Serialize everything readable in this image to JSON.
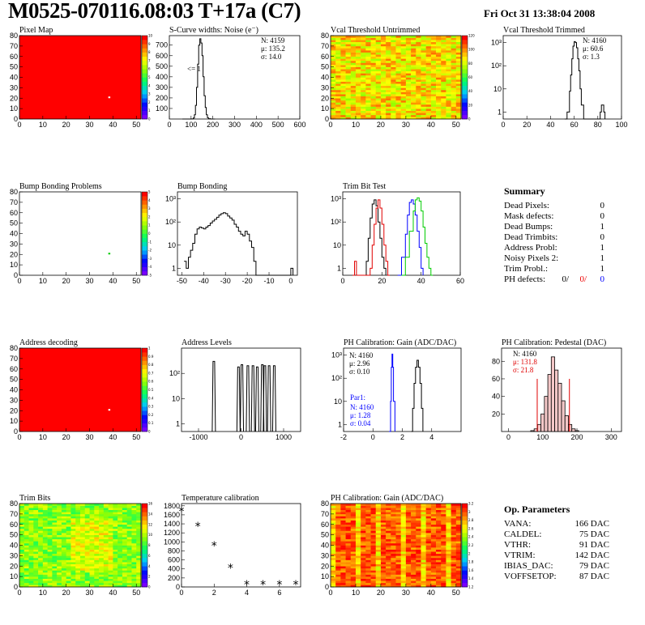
{
  "header": {
    "title": "M0525-070116.08:03 T+17a (C7)",
    "date": "Fri Oct 31 13:38:04 2008"
  },
  "colors": {
    "map_red": "#ff0000",
    "hist_line": "#000000",
    "red": "#e00000",
    "green": "#00cc00",
    "blue": "#0000ff"
  },
  "chart_data": [
    {
      "id": "pixel_map",
      "type": "heatmap",
      "title": "Pixel Map",
      "x_ticks": [
        "0",
        "10",
        "20",
        "30",
        "40",
        "50"
      ],
      "y_ticks": [
        "0",
        "10",
        "20",
        "30",
        "40",
        "50",
        "60",
        "70",
        "80"
      ],
      "xlim": [
        0,
        52
      ],
      "ylim": [
        0,
        80
      ],
      "fill": "#ff0000",
      "marks": [
        {
          "x": 38,
          "y": 20,
          "color": "#ffffff"
        }
      ],
      "palette": [
        "#7f00ff",
        "#4b00ff",
        "#0000ff",
        "#0096ff",
        "#00ffff",
        "#00ff64",
        "#00ff00",
        "#96ff00",
        "#ffff00",
        "#ffb400",
        "#ff6400",
        "#ff0000"
      ],
      "z_ticks": [
        "0",
        "1",
        "2",
        "3",
        "4",
        "5",
        "6",
        "7",
        "8",
        "9",
        "10"
      ]
    },
    {
      "id": "scurve_widths",
      "type": "line",
      "title": "S-Curve widths: Noise (e⁻)",
      "x_ticks": [
        "0",
        "100",
        "200",
        "300",
        "400",
        "500",
        "600"
      ],
      "y_ticks": [
        "100",
        "200",
        "300",
        "400",
        "500",
        "600",
        "700"
      ],
      "xlim": [
        0,
        600
      ],
      "ylim": [
        0,
        790
      ],
      "x": [
        60,
        80,
        100,
        110,
        115,
        120,
        125,
        130,
        135,
        140,
        145,
        150,
        155,
        160,
        165,
        170,
        175,
        180,
        190,
        210
      ],
      "y": [
        0,
        0,
        1,
        10,
        40,
        130,
        300,
        520,
        700,
        760,
        720,
        600,
        400,
        220,
        110,
        40,
        12,
        3,
        0,
        0
      ],
      "stats": [
        "N: 4159",
        "μ: 135.2",
        "σ: 14.0"
      ],
      "side_label": "<= 1"
    },
    {
      "id": "vcal_untrimmed",
      "type": "heatmap",
      "title": "Vcal Threshold Untrimmed",
      "x_ticks": [
        "0",
        "10",
        "20",
        "30",
        "40",
        "50"
      ],
      "y_ticks": [
        "0",
        "10",
        "20",
        "30",
        "40",
        "50",
        "60",
        "70",
        "80"
      ],
      "xlim": [
        0,
        52
      ],
      "ylim": [
        0,
        80
      ],
      "z_ticks": [
        "0",
        "20",
        "40",
        "60",
        "80",
        "100",
        "120"
      ]
    },
    {
      "id": "vcal_trimmed",
      "type": "line",
      "title": "Vcal Threshold Trimmed",
      "x_ticks": [
        "0",
        "20",
        "40",
        "60",
        "80",
        "100"
      ],
      "y_ticks": [
        "1",
        "10",
        "10²",
        "10³"
      ],
      "log_y": true,
      "xlim": [
        0,
        100
      ],
      "ylim": [
        0.5,
        2000
      ],
      "x": [
        52,
        54,
        56,
        57,
        58,
        59,
        60,
        61,
        62,
        63,
        64,
        65,
        66,
        68,
        70,
        80,
        82,
        83,
        84,
        85,
        86
      ],
      "y": [
        0.5,
        1,
        8,
        40,
        200,
        700,
        1100,
        1000,
        600,
        200,
        60,
        10,
        2,
        0.5,
        0.5,
        0.5,
        1,
        2,
        2,
        1,
        0.5
      ],
      "stats": [
        "N: 4160",
        "μ: 60.6",
        "σ: 1.3"
      ]
    },
    {
      "id": "bump_problems",
      "type": "heatmap",
      "title": "Bump Bonding Problems",
      "x_ticks": [
        "0",
        "10",
        "20",
        "30",
        "40",
        "50"
      ],
      "y_ticks": [
        "0",
        "10",
        "20",
        "30",
        "40",
        "50",
        "60",
        "70",
        "80"
      ],
      "xlim": [
        0,
        52
      ],
      "ylim": [
        0,
        80
      ],
      "fill": "#ffffff",
      "marks": [
        {
          "x": 38,
          "y": 20,
          "color": "#00cc00"
        }
      ],
      "z_ticks": [
        "-5",
        "-4",
        "-3",
        "-2",
        "-1",
        "0",
        "1",
        "2",
        "3",
        "4",
        "5"
      ]
    },
    {
      "id": "bump_bonding",
      "type": "line",
      "title": "Bump Bonding",
      "x_ticks": [
        "-50",
        "-40",
        "-30",
        "-20",
        "-10",
        "0"
      ],
      "y_ticks": [
        "1",
        "10",
        "10²",
        "10³"
      ],
      "log_y": true,
      "xlim": [
        -52,
        3
      ],
      "ylim": [
        0.5,
        2000
      ],
      "x": [
        -49,
        -48,
        -47,
        -46,
        -45,
        -44,
        -43,
        -42,
        -41,
        -40,
        -39,
        -38,
        -37,
        -36,
        -35,
        -34,
        -33,
        -32,
        -31,
        -30,
        -29,
        -28,
        -27,
        -26,
        -25,
        -24,
        -23,
        -22,
        -21,
        -20,
        -19,
        -18,
        -17,
        -16,
        -15,
        -10,
        0,
        1
      ],
      "y": [
        2,
        1,
        3,
        6,
        12,
        30,
        50,
        60,
        55,
        50,
        60,
        70,
        90,
        110,
        130,
        160,
        200,
        230,
        250,
        230,
        180,
        150,
        120,
        80,
        60,
        40,
        30,
        25,
        40,
        30,
        15,
        8,
        2,
        0.5,
        0.5,
        0.5,
        1,
        0.5
      ]
    },
    {
      "id": "trim_bit_test",
      "type": "line",
      "title": "Trim Bit Test",
      "x_ticks": [
        "0",
        "20",
        "40",
        "60"
      ],
      "y_ticks": [
        "1",
        "10",
        "10²",
        "10³"
      ],
      "log_y": true,
      "xlim": [
        0,
        60
      ],
      "ylim": [
        0.5,
        2000
      ],
      "series": [
        {
          "color": "#000000",
          "x": [
            10,
            12,
            13,
            14,
            15,
            16,
            17,
            18,
            19,
            20,
            21,
            22
          ],
          "y": [
            0.5,
            2,
            20,
            150,
            600,
            900,
            500,
            100,
            20,
            3,
            1,
            0.5
          ]
        },
        {
          "color": "#e00000",
          "x": [
            5,
            6,
            7,
            14,
            15,
            16,
            17,
            18,
            19,
            20,
            21,
            22,
            23,
            24
          ],
          "y": [
            0.5,
            2,
            0.5,
            1,
            10,
            80,
            400,
            900,
            400,
            80,
            10,
            2,
            0.5,
            0.5
          ]
        },
        {
          "color": "#0000ff",
          "x": [
            28,
            30,
            32,
            33,
            34,
            35,
            36,
            37,
            38,
            39,
            40,
            41
          ],
          "y": [
            0.5,
            3,
            30,
            200,
            700,
            900,
            600,
            200,
            40,
            8,
            1,
            0.5
          ]
        },
        {
          "color": "#00cc00",
          "x": [
            30,
            32,
            34,
            36,
            37,
            38,
            39,
            40,
            41,
            42,
            43,
            44,
            45,
            46
          ],
          "y": [
            0.5,
            3,
            40,
            300,
            900,
            1100,
            800,
            300,
            60,
            12,
            3,
            1,
            0.5,
            0.5
          ]
        }
      ]
    },
    {
      "id": "address_decoding",
      "type": "heatmap",
      "title": "Address decoding",
      "x_ticks": [
        "0",
        "10",
        "20",
        "30",
        "40",
        "50"
      ],
      "y_ticks": [
        "0",
        "10",
        "20",
        "30",
        "40",
        "50",
        "60",
        "70",
        "80"
      ],
      "xlim": [
        0,
        52
      ],
      "ylim": [
        0,
        80
      ],
      "fill": "#ff0000",
      "marks": [
        {
          "x": 38,
          "y": 20,
          "color": "#ffffff"
        }
      ],
      "z_ticks": [
        "0",
        "0.1",
        "0.2",
        "0.3",
        "0.4",
        "0.5",
        "0.6",
        "0.7",
        "0.8",
        "0.9",
        "1"
      ]
    },
    {
      "id": "address_levels",
      "type": "line",
      "title": "Address Levels",
      "x_ticks": [
        "-1000",
        "0",
        "1000"
      ],
      "y_ticks": [
        "1",
        "10",
        "10²"
      ],
      "log_y": true,
      "xlim": [
        -1400,
        1400
      ],
      "ylim": [
        0.5,
        1000
      ],
      "peaks": [
        [
          -640,
          300
        ],
        [
          -60,
          180
        ],
        [
          20,
          220
        ],
        [
          160,
          200
        ],
        [
          280,
          200
        ],
        [
          380,
          180
        ],
        [
          500,
          220
        ],
        [
          560,
          200
        ],
        [
          660,
          200
        ],
        [
          780,
          200
        ]
      ]
    },
    {
      "id": "ph_gain",
      "type": "line",
      "title": "PH Calibration: Gain (ADC/DAC)",
      "x_ticks": [
        "-2",
        "0",
        "2",
        "4"
      ],
      "y_ticks": [
        "1",
        "10",
        "10²",
        "10³"
      ],
      "log_y": true,
      "xlim": [
        -2,
        6
      ],
      "ylim": [
        0.5,
        2000
      ],
      "series": [
        {
          "color": "#0000ff",
          "x": [
            1.1,
            1.2,
            1.25,
            1.3,
            1.35,
            1.4,
            1.5
          ],
          "y": [
            0.5,
            10,
            300,
            1100,
            300,
            10,
            0.5
          ]
        },
        {
          "color": "#000000",
          "x": [
            2.6,
            2.7,
            2.8,
            2.9,
            3.0,
            3.1,
            3.2,
            3.3,
            3.4
          ],
          "y": [
            0.5,
            5,
            60,
            300,
            600,
            300,
            60,
            5,
            0.5
          ]
        }
      ],
      "stats": [
        "N: 4160",
        "μ: 2.96",
        "σ: 0.10"
      ],
      "stats2_title": "Par1:",
      "stats2": [
        "N: 4160",
        "μ: 1.28",
        "σ: 0.04"
      ]
    },
    {
      "id": "ph_pedestal",
      "type": "bar",
      "title": "PH Calibration: Pedestal (DAC)",
      "x_ticks": [
        "0",
        "100",
        "200",
        "300"
      ],
      "y_ticks": [
        "20",
        "40",
        "60",
        "80"
      ],
      "xlim": [
        -20,
        330
      ],
      "ylim": [
        0,
        95
      ],
      "x": [
        70,
        80,
        90,
        100,
        110,
        120,
        130,
        140,
        150,
        160,
        170,
        180,
        190,
        200
      ],
      "y": [
        1,
        3,
        8,
        20,
        40,
        65,
        85,
        70,
        55,
        35,
        18,
        8,
        3,
        1
      ],
      "cut_lines": [
        84,
        178
      ],
      "stats": [
        "N: 4160",
        "μ: 131.8",
        "σ: 21.8"
      ]
    },
    {
      "id": "trim_bits",
      "type": "heatmap",
      "title": "Trim Bits",
      "x_ticks": [
        "0",
        "10",
        "20",
        "30",
        "40",
        "50"
      ],
      "y_ticks": [
        "0",
        "10",
        "20",
        "30",
        "40",
        "50",
        "60",
        "70",
        "80"
      ],
      "xlim": [
        0,
        52
      ],
      "ylim": [
        0,
        80
      ],
      "z_ticks": [
        "0",
        "2",
        "4",
        "6",
        "8",
        "10",
        "12",
        "14",
        "16"
      ]
    },
    {
      "id": "temperature_calibration",
      "type": "scatter",
      "title": "Temperature calibration",
      "x_ticks": [
        "0",
        "2",
        "4",
        "6"
      ],
      "y_ticks": [
        "0",
        "200",
        "400",
        "600",
        "800",
        "1000",
        "1200",
        "1400",
        "1600",
        "1800"
      ],
      "xlim": [
        0,
        7.3
      ],
      "ylim": [
        0,
        1850
      ],
      "x": [
        0,
        1,
        2,
        3,
        4,
        5,
        6,
        7
      ],
      "y": [
        1680,
        1350,
        920,
        420,
        50,
        50,
        50,
        50
      ]
    },
    {
      "id": "ph_gain_map",
      "type": "heatmap",
      "title": "PH Calibration: Gain (ADC/DAC)",
      "x_ticks": [
        "0",
        "10",
        "20",
        "30",
        "40",
        "50"
      ],
      "y_ticks": [
        "0",
        "10",
        "20",
        "30",
        "40",
        "50",
        "60",
        "70",
        "80"
      ],
      "xlim": [
        0,
        52
      ],
      "ylim": [
        0,
        80
      ],
      "z_ticks": [
        "1.2",
        "1.4",
        "1.6",
        "1.8",
        "2",
        "2.2",
        "2.4",
        "2.6",
        "2.8",
        "3",
        "3.2"
      ]
    }
  ],
  "summary": {
    "title": "Summary",
    "rows": [
      {
        "label": "Dead Pixels:",
        "value": "0"
      },
      {
        "label": "Mask defects:",
        "value": "0"
      },
      {
        "label": "Dead Bumps:",
        "value": "1"
      },
      {
        "label": "Dead Trimbits:",
        "value": "0"
      },
      {
        "label": "Address Probl:",
        "value": "1"
      },
      {
        "label": "Noisy Pixels 2:",
        "value": "1"
      },
      {
        "label": "Trim Probl.:",
        "value": "1"
      }
    ],
    "ph": {
      "label": "PH defects:",
      "v1": "0/",
      "v2": "0/",
      "v3": "0"
    }
  },
  "op_parameters": {
    "title": "Op. Parameters",
    "rows": [
      {
        "label": "VANA:",
        "value": "166 DAC"
      },
      {
        "label": "CALDEL:",
        "value": "75 DAC"
      },
      {
        "label": "VTHR:",
        "value": "91 DAC"
      },
      {
        "label": "VTRIM:",
        "value": "142 DAC"
      },
      {
        "label": "IBIAS_DAC:",
        "value": "79 DAC"
      },
      {
        "label": "VOFFSETOP:",
        "value": "87 DAC"
      }
    ]
  }
}
